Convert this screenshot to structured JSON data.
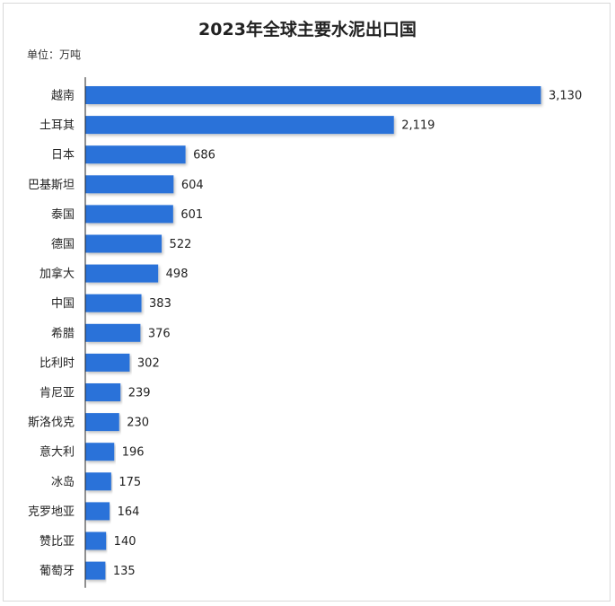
{
  "chart_data": {
    "type": "bar",
    "orientation": "horizontal",
    "title": "2023年全球主要水泥出口国",
    "unit_label": "单位：万吨",
    "categories": [
      "越南",
      "土耳其",
      "日本",
      "巴基斯坦",
      "泰国",
      "德国",
      "加拿大",
      "中国",
      "希腊",
      "比利时",
      "肯尼亚",
      "斯洛伐克",
      "意大利",
      "冰岛",
      "克罗地亚",
      "赞比亚",
      "葡萄牙"
    ],
    "values": [
      3130,
      2119,
      686,
      604,
      601,
      522,
      498,
      383,
      376,
      302,
      239,
      230,
      196,
      175,
      164,
      140,
      135
    ],
    "value_labels": [
      "3,130",
      "2,119",
      "686",
      "604",
      "601",
      "522",
      "498",
      "383",
      "376",
      "302",
      "239",
      "230",
      "196",
      "175",
      "164",
      "140",
      "135"
    ],
    "xlim": [
      0,
      3130
    ],
    "grid": false,
    "bar_color": "#2a72d9"
  }
}
